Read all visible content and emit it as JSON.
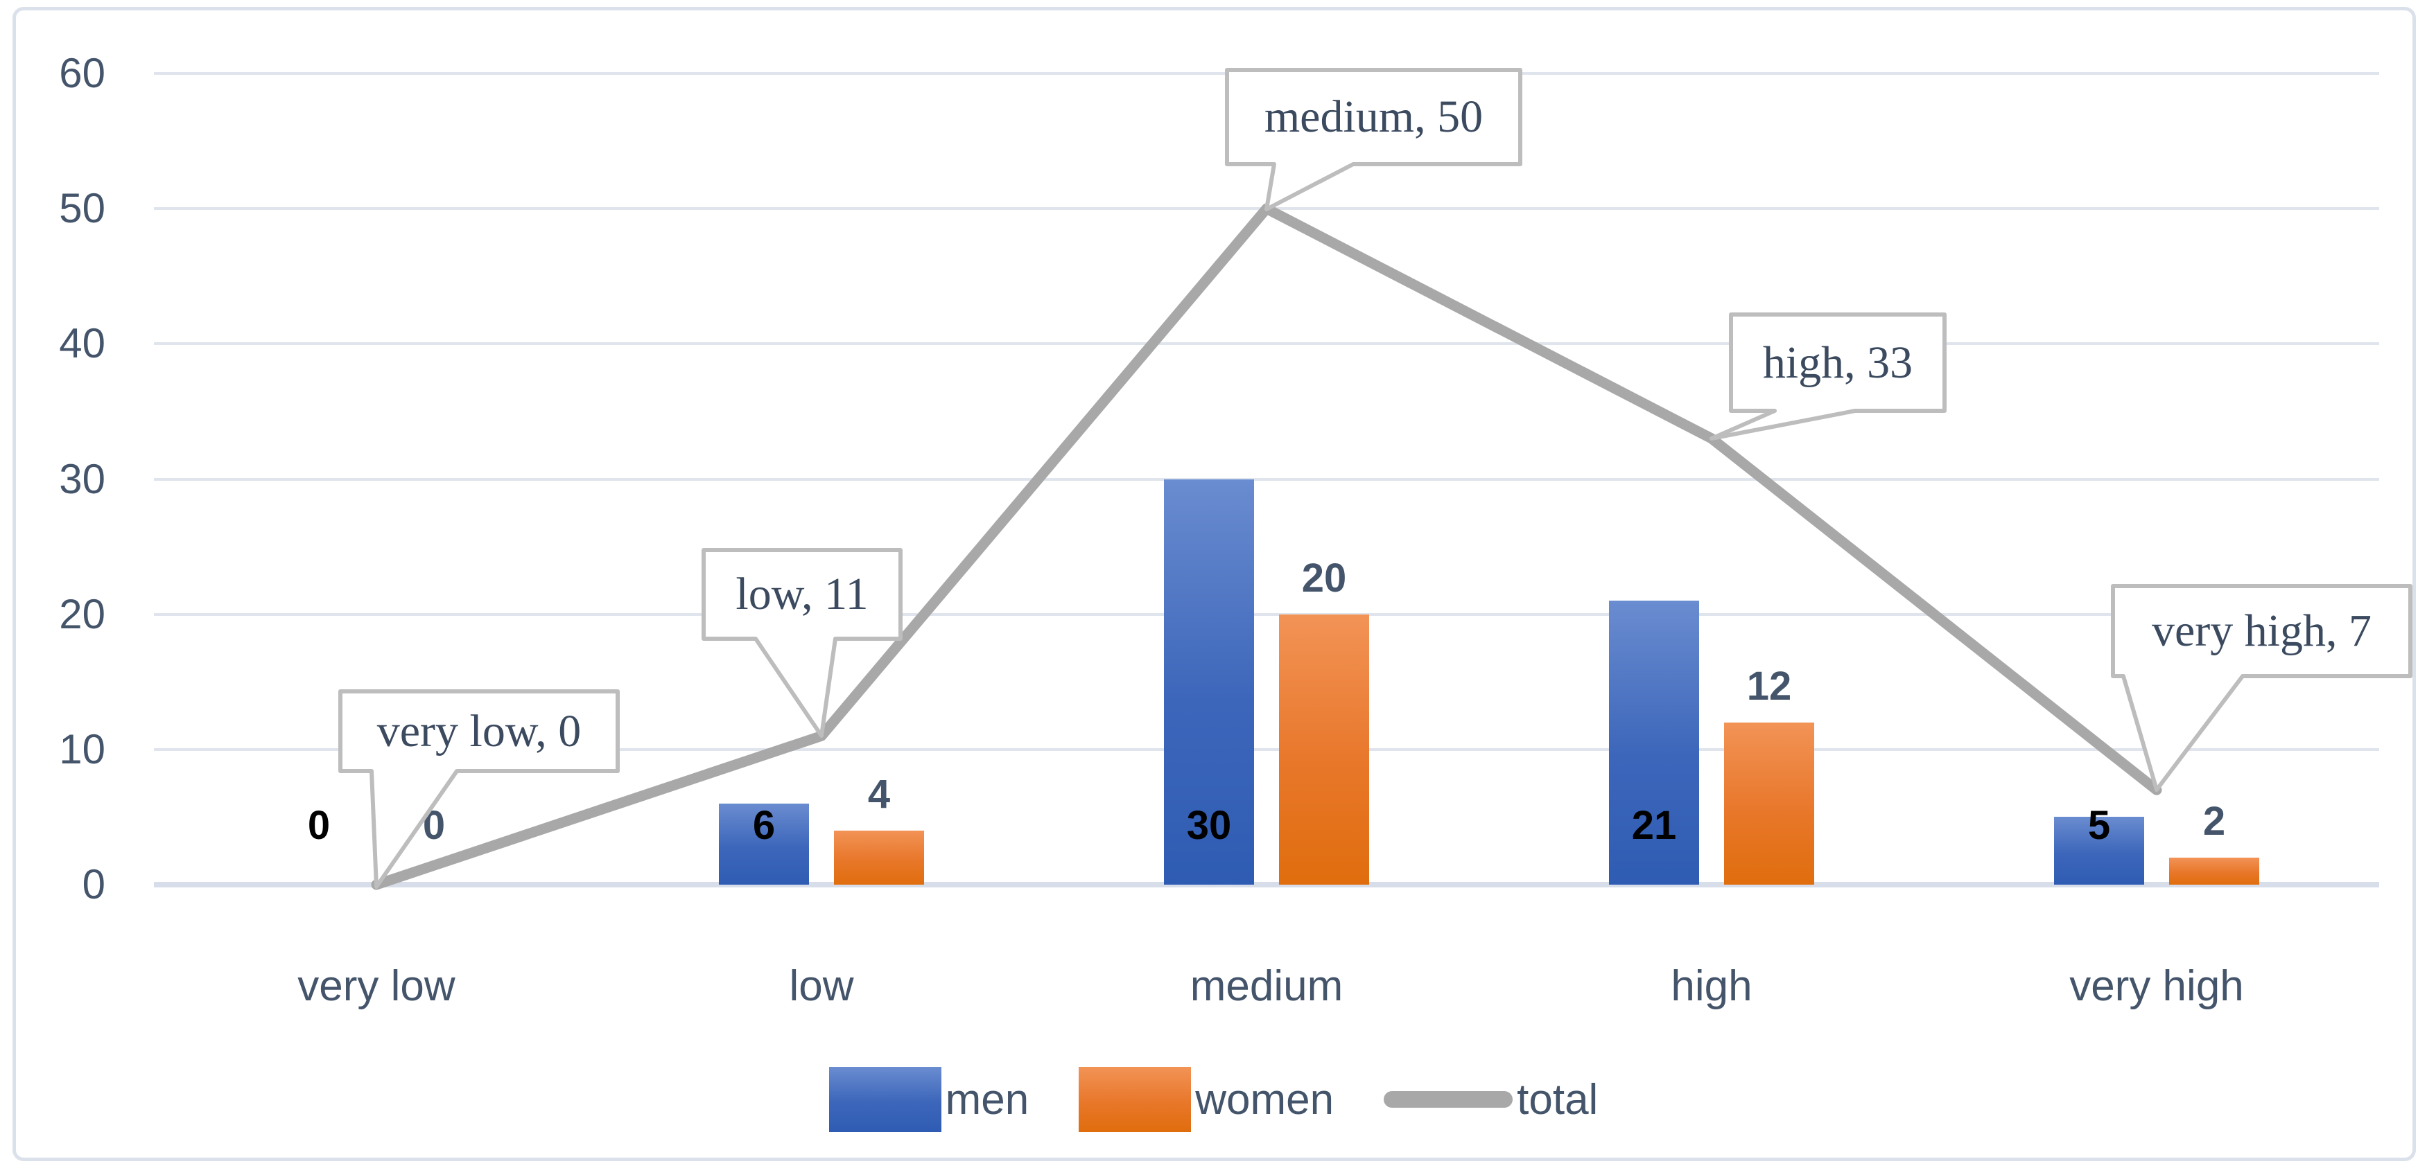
{
  "chart_data": {
    "type": "bar",
    "subtype": "grouped-bars-with-line-overlay",
    "title": "",
    "xlabel": "",
    "ylabel": "",
    "categories": [
      "very low",
      "low",
      "medium",
      "high",
      "very high"
    ],
    "series": [
      {
        "name": "men",
        "kind": "bar",
        "color": "#4472C4",
        "values": [
          0,
          6,
          30,
          21,
          5
        ]
      },
      {
        "name": "women",
        "kind": "bar",
        "color": "#ED7D31",
        "values": [
          0,
          4,
          20,
          12,
          2
        ]
      },
      {
        "name": "total",
        "kind": "line",
        "color": "#A6A6A6",
        "values": [
          0,
          11,
          50,
          33,
          7
        ]
      }
    ],
    "ylim": [
      0,
      60
    ],
    "yticks": [
      0,
      10,
      20,
      30,
      40,
      50,
      60
    ],
    "grid": true,
    "legend_position": "bottom",
    "callouts": [
      {
        "category": "very low",
        "value": 0,
        "label": "very low, 0"
      },
      {
        "category": "low",
        "value": 11,
        "label": "low, 11"
      },
      {
        "category": "medium",
        "value": 50,
        "label": "medium, 50"
      },
      {
        "category": "high",
        "value": 33,
        "label": "high, 33"
      },
      {
        "category": "very high",
        "value": 7,
        "label": "very high, 7"
      }
    ],
    "colors": {
      "grid": "#E0E5ED",
      "axis_text": "#44546A",
      "men_data_label": "#000000",
      "women_data_label": "#44546A",
      "line": "#A8A8A8",
      "callout_border": "#BDBDBD",
      "callout_text": "#3B4A5F",
      "frame_border": "#DBE1EB"
    }
  }
}
